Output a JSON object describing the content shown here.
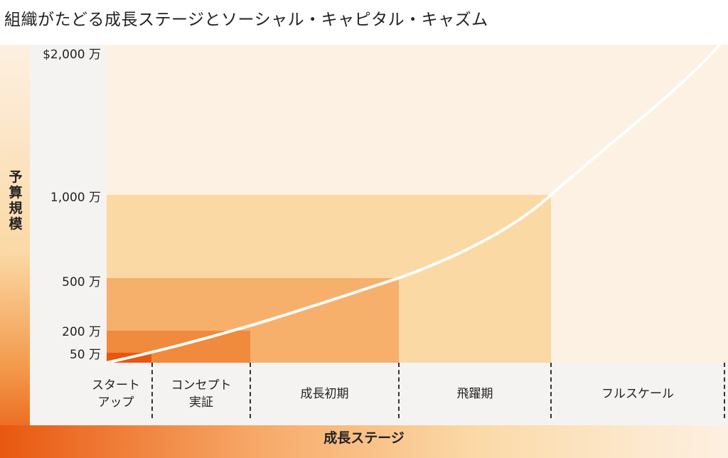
{
  "title": "組織がたどる成長ステージとソーシャル・キャピタル・キャズム",
  "y_axis_label": "予算規模",
  "x_axis_label": "成長ステージ",
  "y_ticks": [
    "$2,000 万",
    "1,000 万",
    "500 万",
    "200 万",
    "50 万"
  ],
  "stages": [
    {
      "line1": "スタート",
      "line2": "アップ"
    },
    {
      "line1": "コンセプト",
      "line2": "実証"
    },
    {
      "line1": "成長初期",
      "line2": ""
    },
    {
      "line1": "飛躍期",
      "line2": ""
    },
    {
      "line1": "フルスケール",
      "line2": ""
    }
  ],
  "colors": {
    "block_1000": "#fbd9a4",
    "block_500": "#f6b06c",
    "block_200": "#f08a3c",
    "block_50": "#e8570f",
    "curve": "#ffffff"
  }
}
